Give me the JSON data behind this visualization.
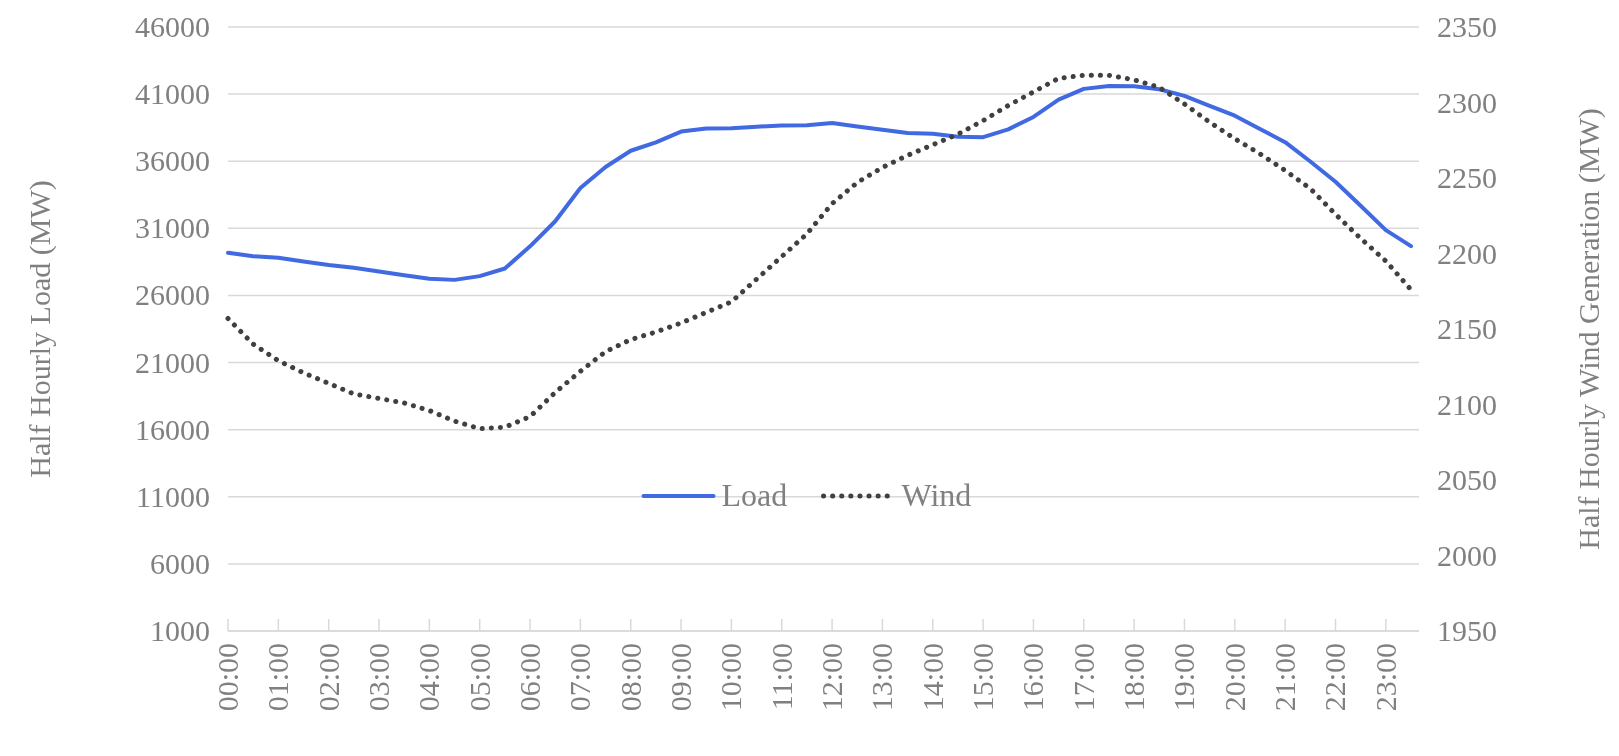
{
  "chart_data": {
    "type": "line",
    "ylabel": "Half Hourly Load (MW)",
    "y2label": "Half Hourly Wind Generation (MW)",
    "categories": [
      "00:00",
      null,
      "01:00",
      null,
      "02:00",
      null,
      "03:00",
      null,
      "04:00",
      null,
      "05:00",
      null,
      "06:00",
      null,
      "07:00",
      null,
      "08:00",
      null,
      "09:00",
      null,
      "10:00",
      null,
      "11:00",
      null,
      "12:00",
      null,
      "13:00",
      null,
      "14:00",
      null,
      "15:00",
      null,
      "16:00",
      null,
      "17:00",
      null,
      "18:00",
      null,
      "19:00",
      null,
      "20:00",
      null,
      "21:00",
      null,
      "22:00",
      null,
      "23:00",
      null
    ],
    "series": [
      {
        "name": "Load",
        "color": "#4169e1",
        "line_style": "solid",
        "values": [
          29180,
          28920,
          28810,
          28530,
          28270,
          28070,
          27780,
          27500,
          27240,
          27160,
          27440,
          28010,
          29660,
          31530,
          34000,
          35570,
          36780,
          37410,
          38210,
          38430,
          38460,
          38570,
          38670,
          38680,
          38840,
          38590,
          38340,
          38100,
          38040,
          37820,
          37790,
          38370,
          39300,
          40590,
          41390,
          41610,
          41580,
          41360,
          40870,
          40130,
          39390,
          38400,
          37420,
          35980,
          34470,
          32680,
          30870,
          29670
        ]
      },
      {
        "name": "Wind",
        "color": "#404040",
        "line_style": "dotted",
        "axis": "y2",
        "values": [
          2157,
          2140,
          2129,
          2121,
          2114,
          2107,
          2104,
          2101,
          2096,
          2089,
          2084,
          2085,
          2092,
          2108,
          2122,
          2135,
          2143,
          2148,
          2154,
          2161,
          2168,
          2183,
          2198,
          2213,
          2233,
          2247,
          2257,
          2265,
          2272,
          2279,
          2288,
          2298,
          2307,
          2316,
          2318,
          2318,
          2315,
          2310,
          2299,
          2287,
          2276,
          2266,
          2255,
          2243,
          2226,
          2210,
          2195,
          2176
        ]
      }
    ],
    "ylim": [
      1000,
      46000
    ],
    "yticks": [
      1000,
      6000,
      11000,
      16000,
      21000,
      26000,
      31000,
      36000,
      41000,
      46000
    ],
    "y2lim": [
      1950,
      2350
    ],
    "y2ticks": [
      1950,
      2000,
      2050,
      2100,
      2150,
      2200,
      2250,
      2300,
      2350
    ],
    "grid": "y",
    "legend": "bottom",
    "marker": "none"
  }
}
